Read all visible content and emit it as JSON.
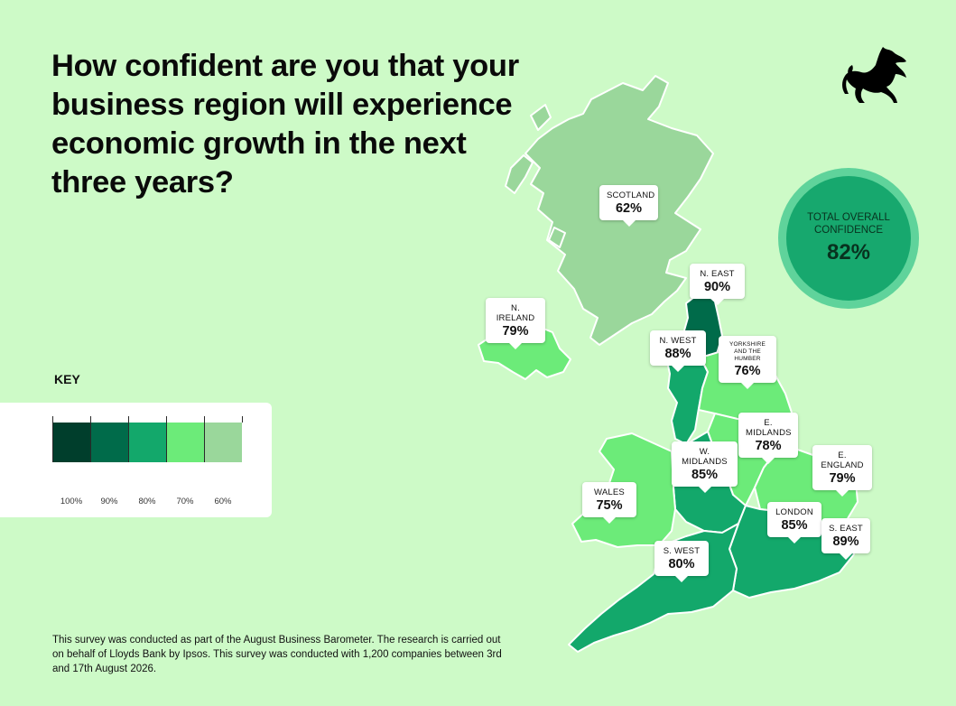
{
  "title": "How confident are you that your business region will experience economic growth in the next three years?",
  "logo": {
    "icon": "black-horse-logo-icon",
    "color": "#000000"
  },
  "overall": {
    "label": "TOTAL OVERALL CONFIDENCE",
    "value": "82%",
    "fraction": 0.82
  },
  "regions": [
    {
      "id": "scotland",
      "name": "SCOTLAND",
      "value": "62%",
      "color": "#9ad79b"
    },
    {
      "id": "n-east",
      "name": "N. EAST",
      "value": "90%",
      "color": "#006b4a"
    },
    {
      "id": "n-ireland",
      "name": "N. IRELAND",
      "value": "79%",
      "color": "#6ceb79"
    },
    {
      "id": "n-west",
      "name": "N. WEST",
      "value": "88%",
      "color": "#13a86b"
    },
    {
      "id": "yorkshire",
      "name": "YORKSHIRE AND THE HUMBER",
      "value": "76%",
      "color": "#6ceb79"
    },
    {
      "id": "e-midlands",
      "name": "E. MIDLANDS",
      "value": "78%",
      "color": "#6ceb79"
    },
    {
      "id": "w-midlands",
      "name": "W. MIDLANDS",
      "value": "85%",
      "color": "#13a86b"
    },
    {
      "id": "e-england",
      "name": "E. ENGLAND",
      "value": "79%",
      "color": "#6ceb79"
    },
    {
      "id": "wales",
      "name": "WALES",
      "value": "75%",
      "color": "#6ceb79"
    },
    {
      "id": "london",
      "name": "LONDON",
      "value": "85%",
      "color": "#13a86b"
    },
    {
      "id": "s-east",
      "name": "S. EAST",
      "value": "89%",
      "color": "#13a86b"
    },
    {
      "id": "s-west",
      "name": "S. WEST",
      "value": "80%",
      "color": "#13a86b"
    }
  ],
  "key": {
    "title": "KEY",
    "items": [
      {
        "label": "100%",
        "color": "#003e2c"
      },
      {
        "label": "90%",
        "color": "#006b4a"
      },
      {
        "label": "80%",
        "color": "#13a86b"
      },
      {
        "label": "70%",
        "color": "#6ceb79"
      },
      {
        "label": "60%",
        "color": "#9ad79b"
      }
    ]
  },
  "footnote": "This survey was conducted as part of the August Business Barometer. The research is carried out on behalf of Lloyds Bank by Ipsos. This survey was conducted with 1,200 companies between 3rd and 17th August 2026.",
  "colors": {
    "background": "#cdfac7",
    "circle_outer": "#5fd39b",
    "circle_inner": "#17a86e"
  }
}
